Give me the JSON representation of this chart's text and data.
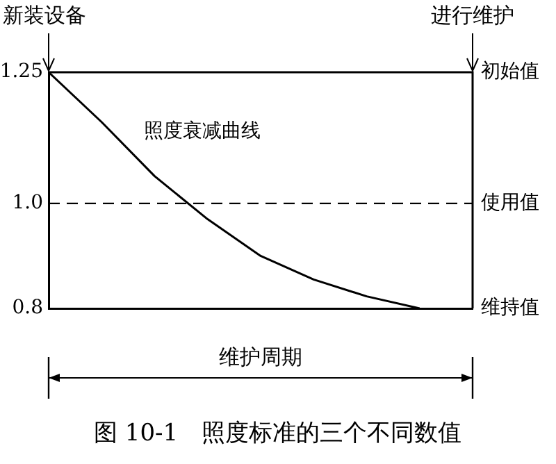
{
  "chart_data": {
    "type": "line",
    "title": "图 10-1　照度标准的三个不同数值",
    "xlabel": "维护周期",
    "categories": [
      null,
      null,
      null,
      null,
      null,
      null,
      null,
      null,
      null
    ],
    "series": [
      {
        "name": "照度衰减曲线",
        "color": "#000000",
        "values": [
          1.25,
          1.155,
          1.052,
          0.97,
          0.9,
          0.855,
          0.823,
          0.8,
          null
        ]
      }
    ],
    "ylim": [
      0.8,
      1.25
    ],
    "yticks": [
      {
        "value": 0.8,
        "label": "0.8"
      },
      {
        "value": 1.0,
        "label": "1.0"
      },
      1.25
    ],
    "ref_lines": [
      {
        "axis": "y",
        "value": 1.0,
        "line_style": "dashed",
        "color": "#000000",
        "label": "使用值"
      }
    ],
    "annotations": [
      "新装设备",
      "进行维护",
      "初始值",
      "维持值"
    ],
    "marker": "none",
    "line_style": "solid",
    "grid": false,
    "legend": false,
    "tick_labels": "y"
  }
}
